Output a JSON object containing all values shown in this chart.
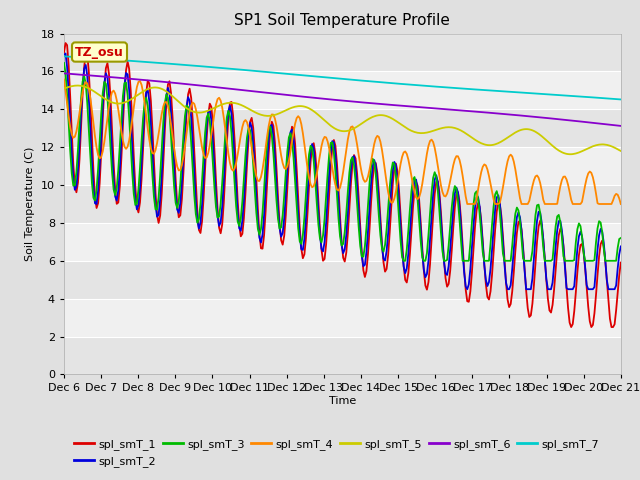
{
  "title": "SP1 Soil Temperature Profile",
  "xlabel": "Time",
  "ylabel": "Soil Temperature (C)",
  "ylim": [
    0,
    18
  ],
  "annotation": "TZ_osu",
  "bg_outer": "#e0e0e0",
  "plot_bg_light": "#f0f0f0",
  "plot_bg_dark": "#e4e4e4",
  "x_tick_labels": [
    "Dec 6",
    "Dec 7",
    "Dec 8",
    "Dec 9",
    "Dec 10",
    "Dec 11",
    "Dec 12",
    "Dec 13",
    "Dec 14",
    "Dec 15",
    "Dec 16",
    "Dec 17",
    "Dec 18",
    "Dec 19",
    "Dec 20",
    "Dec 21"
  ],
  "colors": {
    "spl_smT_1": "#dd0000",
    "spl_smT_2": "#0000dd",
    "spl_smT_3": "#00bb00",
    "spl_smT_4": "#ff8800",
    "spl_smT_5": "#cccc00",
    "spl_smT_6": "#8800cc",
    "spl_smT_7": "#00cccc"
  },
  "lw": 1.3
}
